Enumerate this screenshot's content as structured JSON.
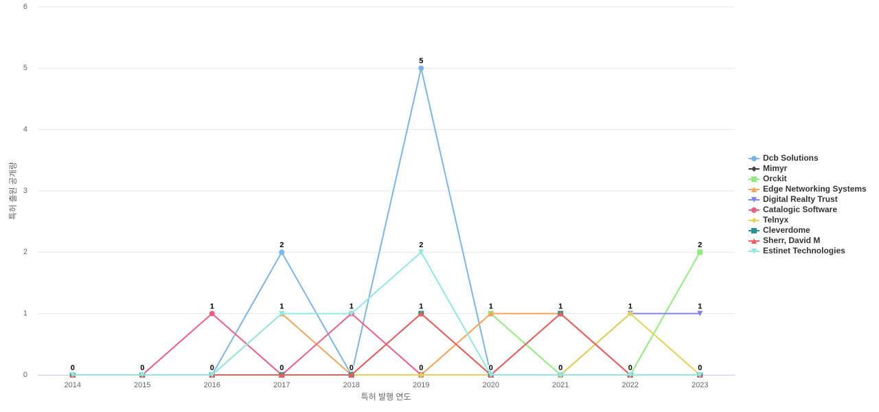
{
  "chart_data": {
    "type": "line",
    "x_label": "특허 발행 연도",
    "y_label": "특허 출원 공개량",
    "categories": [
      "2014",
      "2015",
      "2016",
      "2017",
      "2018",
      "2019",
      "2020",
      "2021",
      "2022",
      "2023"
    ],
    "ylim": [
      0,
      6
    ],
    "yticks": [
      0,
      1,
      2,
      3,
      4,
      5,
      6
    ],
    "grid": true,
    "legend": "right",
    "series": [
      {
        "name": "Dcb Solutions",
        "color": "#7cb5ec",
        "marker": "circle",
        "values": [
          0,
          0,
          0,
          2,
          0,
          5,
          0,
          0,
          0,
          0
        ]
      },
      {
        "name": "Mimyr",
        "color": "#434348",
        "marker": "diamond",
        "values": [
          0,
          0,
          0,
          0,
          0,
          0,
          0,
          0,
          0,
          0
        ]
      },
      {
        "name": "Orckit",
        "color": "#90ed7d",
        "marker": "square",
        "values": [
          0,
          0,
          0,
          0,
          0,
          0,
          1,
          0,
          0,
          2
        ]
      },
      {
        "name": "Edge Networking Systems",
        "color": "#f7a35c",
        "marker": "triangle",
        "values": [
          0,
          0,
          0,
          1,
          0,
          0,
          1,
          1,
          0,
          0
        ]
      },
      {
        "name": "Digital Realty Trust",
        "color": "#8085e9",
        "marker": "triangle-down",
        "values": [
          0,
          0,
          0,
          0,
          0,
          0,
          0,
          0,
          1,
          1
        ]
      },
      {
        "name": "Catalogic Software",
        "color": "#f15c80",
        "marker": "circle",
        "values": [
          0,
          0,
          1,
          0,
          1,
          0,
          0,
          0,
          0,
          0
        ]
      },
      {
        "name": "Telnyx",
        "color": "#e4d354",
        "marker": "diamond",
        "values": [
          0,
          0,
          0,
          0,
          0,
          0,
          0,
          0,
          1,
          0
        ]
      },
      {
        "name": "Cleverdome",
        "color": "#2b908f",
        "marker": "square",
        "values": [
          0,
          0,
          0,
          0,
          0,
          1,
          0,
          1,
          0,
          0
        ]
      },
      {
        "name": "Sherr, David M",
        "color": "#f45b5b",
        "marker": "triangle",
        "values": [
          0,
          0,
          0,
          0,
          0,
          1,
          0,
          1,
          0,
          0
        ]
      },
      {
        "name": "Estinet Technologies",
        "color": "#91e8e1",
        "marker": "triangle-down",
        "values": [
          0,
          0,
          0,
          1,
          1,
          2,
          0,
          0,
          0,
          0
        ]
      }
    ]
  }
}
